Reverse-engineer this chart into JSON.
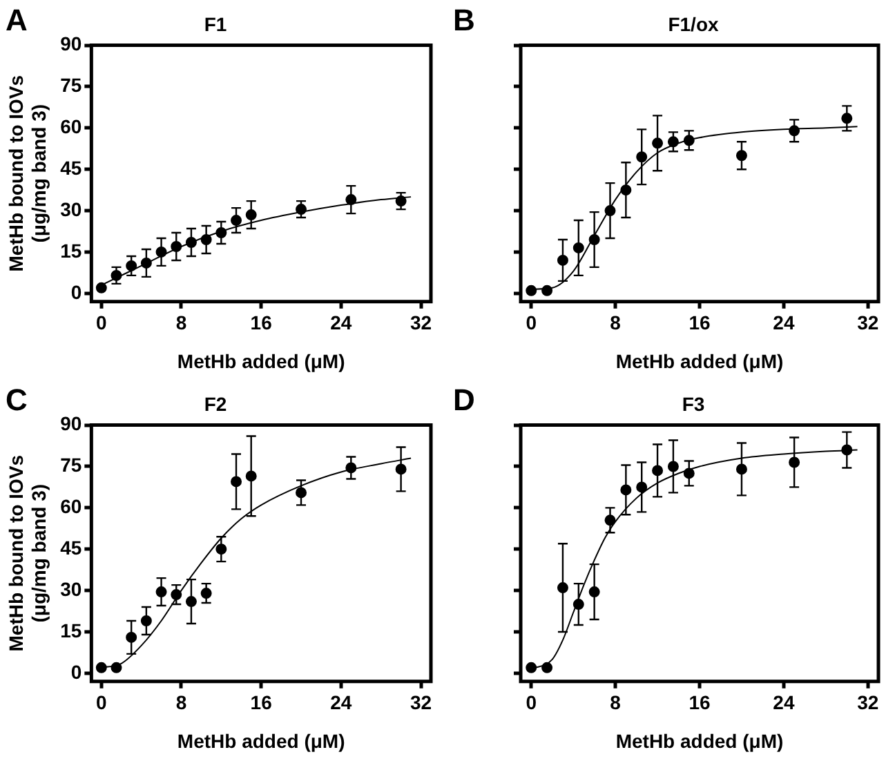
{
  "chart_data": [
    {
      "type": "scatter",
      "title": "F1",
      "xlabel": "MetHb added (μM)",
      "ylabel": "MetHb bound to IOVs\n(μg/mg band 3)",
      "annotations": [
        "A"
      ],
      "xlim": [
        -1,
        33
      ],
      "xticks": [
        0,
        8,
        16,
        24,
        32
      ],
      "ylim": [
        -3,
        90
      ],
      "yticks": [
        0,
        15,
        30,
        45,
        60,
        75,
        90
      ],
      "grid": false,
      "legend": false,
      "marker": "circle",
      "series": [
        {
          "color": "#000000",
          "x": [
            0,
            1.5,
            3,
            4.5,
            6,
            7.5,
            9,
            10.5,
            12,
            13.5,
            15,
            20,
            25,
            30
          ],
          "values": [
            2,
            6.5,
            10,
            11,
            15,
            17,
            18.5,
            19.5,
            22,
            26.5,
            28.5,
            30.5,
            34,
            33.5
          ],
          "errors": [
            null,
            3,
            3.5,
            5,
            5,
            5,
            5,
            5,
            4,
            4.5,
            5,
            3,
            5,
            3
          ]
        },
        {
          "type": "line",
          "color": "#000000",
          "marker": "none",
          "x": [
            0,
            4,
            8,
            12,
            16,
            20,
            24,
            28,
            31
          ],
          "values": [
            3,
            10,
            17,
            22.5,
            26.5,
            29.5,
            32,
            34,
            35
          ]
        }
      ]
    },
    {
      "type": "scatter",
      "title": "F1/ox",
      "xlabel": "MetHb added (μM)",
      "annotations": [
        "B"
      ],
      "xlim": [
        -1,
        33
      ],
      "xticks": [
        0,
        8,
        16,
        24,
        32
      ],
      "ylim": [
        -3,
        90
      ],
      "yticks": [
        0,
        15,
        30,
        45,
        60,
        75,
        90
      ],
      "tick_labels": "x",
      "grid": false,
      "legend": false,
      "marker": "circle",
      "series": [
        {
          "color": "#000000",
          "x": [
            0,
            1.5,
            3,
            4.5,
            6,
            7.5,
            9,
            10.5,
            12,
            13.5,
            15,
            20,
            25,
            30
          ],
          "values": [
            1,
            1,
            12,
            16.5,
            19.5,
            30,
            37.5,
            49.5,
            54.5,
            55,
            55.5,
            50,
            59,
            63.5
          ],
          "errors": [
            null,
            null,
            7.5,
            10,
            10,
            10,
            10,
            10,
            10,
            3.5,
            3.5,
            5,
            4,
            4.5
          ]
        },
        {
          "type": "line",
          "color": "#000000",
          "marker": "none",
          "x": [
            0,
            2,
            4,
            6,
            8,
            10,
            12,
            14,
            16,
            20,
            24,
            28,
            31
          ],
          "values": [
            1.5,
            2,
            8,
            21,
            34,
            44,
            51,
            54.5,
            56.5,
            58.5,
            59.5,
            60,
            60.5
          ]
        }
      ]
    },
    {
      "type": "scatter",
      "title": "F2",
      "xlabel": "MetHb added (μM)",
      "ylabel": "MetHb bound to IOVs\n(μg/mg band 3)",
      "annotations": [
        "C"
      ],
      "xlim": [
        -1,
        33
      ],
      "xticks": [
        0,
        8,
        16,
        24,
        32
      ],
      "ylim": [
        -3,
        90
      ],
      "yticks": [
        0,
        15,
        30,
        45,
        60,
        75,
        90
      ],
      "grid": false,
      "legend": false,
      "marker": "circle",
      "series": [
        {
          "color": "#000000",
          "x": [
            0,
            1.5,
            3,
            4.5,
            6,
            7.5,
            9,
            10.5,
            12,
            13.5,
            15,
            20,
            25,
            30
          ],
          "values": [
            2,
            2,
            13,
            19,
            29.5,
            28.5,
            26,
            29,
            45,
            69.5,
            71.5,
            65.5,
            74.5,
            74
          ],
          "errors": [
            null,
            null,
            6,
            5,
            5,
            3.5,
            8,
            3.5,
            4.5,
            10,
            14.5,
            4.5,
            4,
            8
          ]
        },
        {
          "type": "line",
          "color": "#000000",
          "marker": "none",
          "x": [
            0,
            2,
            4,
            6,
            8,
            10,
            12,
            14,
            16,
            20,
            24,
            28,
            31
          ],
          "values": [
            2,
            3.5,
            10,
            19,
            30,
            40,
            49,
            56,
            61,
            68,
            73,
            76,
            78
          ]
        }
      ]
    },
    {
      "type": "scatter",
      "title": "F3",
      "xlabel": "MetHb added (μM)",
      "annotations": [
        "D"
      ],
      "xlim": [
        -1,
        33
      ],
      "xticks": [
        0,
        8,
        16,
        24,
        32
      ],
      "ylim": [
        -3,
        90
      ],
      "yticks": [
        0,
        15,
        30,
        45,
        60,
        75,
        90
      ],
      "tick_labels": "x",
      "grid": false,
      "legend": false,
      "marker": "circle",
      "series": [
        {
          "color": "#000000",
          "x": [
            0,
            1.5,
            3,
            4.5,
            6,
            7.5,
            9,
            10.5,
            12,
            13.5,
            15,
            20,
            25,
            30
          ],
          "values": [
            2,
            2,
            31,
            25,
            29.5,
            55.5,
            66.5,
            67.5,
            73.5,
            75,
            72.5,
            74,
            76.5,
            81
          ],
          "errors": [
            null,
            null,
            16,
            7.5,
            10,
            4.5,
            9,
            9,
            9.5,
            9.5,
            4.5,
            9.5,
            9,
            6.5
          ]
        },
        {
          "type": "line",
          "color": "#000000",
          "marker": "none",
          "x": [
            0,
            2,
            3,
            4,
            5,
            6,
            7,
            8,
            10,
            12,
            14,
            16,
            20,
            24,
            28,
            31
          ],
          "values": [
            1.5,
            5,
            12,
            22,
            32,
            41,
            49,
            55,
            63.5,
            69,
            72.5,
            75,
            78,
            79.5,
            80.5,
            81
          ]
        }
      ]
    }
  ]
}
